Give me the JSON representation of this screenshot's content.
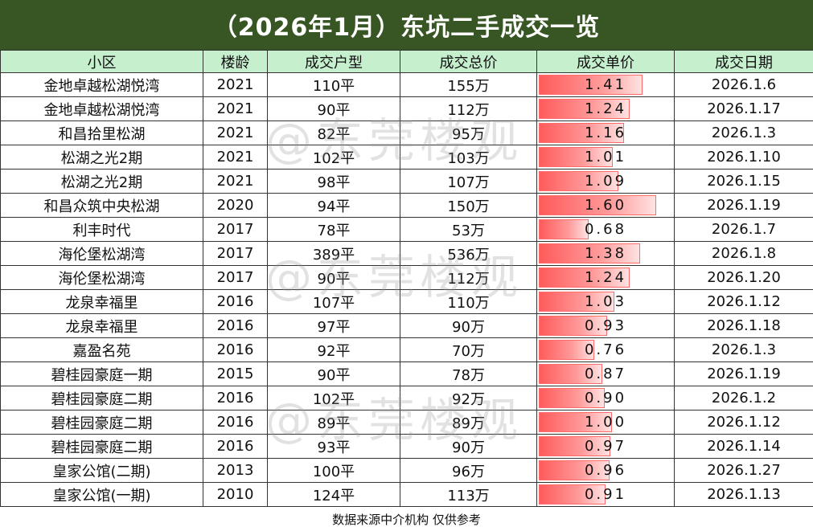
{
  "title": "（2026年1月）东坑二手成交一览",
  "headers": [
    "小区",
    "楼龄",
    "成交户型",
    "成交总价",
    "成交单价",
    "成交日期"
  ],
  "rows": [
    {
      "name": "金地卓越松湖悦湾",
      "age": "2021",
      "size": "110平",
      "total": "155万",
      "unit": "1.41",
      "date": "2026.1.6"
    },
    {
      "name": "金地卓越松湖悦湾",
      "age": "2021",
      "size": "90平",
      "total": "112万",
      "unit": "1.24",
      "date": "2026.1.17"
    },
    {
      "name": "和昌拾里松湖",
      "age": "2021",
      "size": "82平",
      "total": "95万",
      "unit": "1.16",
      "date": "2026.1.3"
    },
    {
      "name": "松湖之光2期",
      "age": "2021",
      "size": "102平",
      "total": "103万",
      "unit": "1.01",
      "date": "2026.1.10"
    },
    {
      "name": "松湖之光2期",
      "age": "2021",
      "size": "98平",
      "total": "107万",
      "unit": "1.09",
      "date": "2026.1.15"
    },
    {
      "name": "和昌众筑中央松湖",
      "age": "2020",
      "size": "94平",
      "total": "150万",
      "unit": "1.60",
      "date": "2026.1.19"
    },
    {
      "name": "利丰时代",
      "age": "2017",
      "size": "78平",
      "total": "53万",
      "unit": "0.68",
      "date": "2026.1.7"
    },
    {
      "name": "海伦堡松湖湾",
      "age": "2017",
      "size": "389平",
      "total": "536万",
      "unit": "1.38",
      "date": "2026.1.8"
    },
    {
      "name": "海伦堡松湖湾",
      "age": "2017",
      "size": "90平",
      "total": "112万",
      "unit": "1.24",
      "date": "2026.1.20"
    },
    {
      "name": "龙泉幸福里",
      "age": "2016",
      "size": "107平",
      "total": "110万",
      "unit": "1.03",
      "date": "2026.1.12"
    },
    {
      "name": "龙泉幸福里",
      "age": "2016",
      "size": "97平",
      "total": "90万",
      "unit": "0.93",
      "date": "2026.1.18"
    },
    {
      "name": "嘉盈名苑",
      "age": "2016",
      "size": "92平",
      "total": "70万",
      "unit": "0.76",
      "date": "2026.1.3"
    },
    {
      "name": "碧桂园豪庭一期",
      "age": "2015",
      "size": "90平",
      "total": "78万",
      "unit": "0.87",
      "date": "2026.1.19"
    },
    {
      "name": "碧桂园豪庭二期",
      "age": "2016",
      "size": "102平",
      "total": "92万",
      "unit": "0.90",
      "date": "2026.1.2"
    },
    {
      "name": "碧桂园豪庭二期",
      "age": "2016",
      "size": "89平",
      "total": "89万",
      "unit": "1.00",
      "date": "2026.1.12"
    },
    {
      "name": "碧桂园豪庭二期",
      "age": "2016",
      "size": "93平",
      "total": "90万",
      "unit": "0.97",
      "date": "2026.1.14"
    },
    {
      "name": "皇家公馆(二期)",
      "age": "2013",
      "size": "100平",
      "total": "96万",
      "unit": "0.96",
      "date": "2026.1.27"
    },
    {
      "name": "皇家公馆(一期)",
      "age": "2010",
      "size": "124平",
      "total": "113万",
      "unit": "0.91",
      "date": "2026.1.13"
    }
  ],
  "bar_scale_max": 1.6,
  "footer": "数据来源中介机构  仅供参考",
  "watermark": "@东莞楼观",
  "colors": {
    "title_bg": "#375623",
    "header_bg": "#c6efce",
    "bar": "#ff5b5b"
  }
}
